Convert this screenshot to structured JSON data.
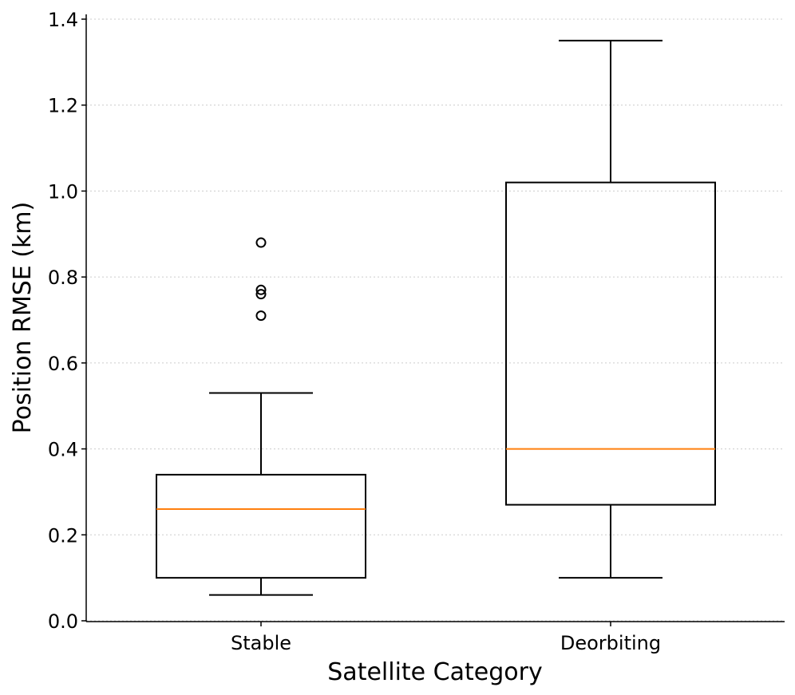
{
  "chart_data": {
    "type": "boxplot",
    "title": "",
    "xlabel": "Satellite Category",
    "ylabel": "Position RMSE (km)",
    "ylim": [
      0.0,
      1.4
    ],
    "yticks": [
      0.0,
      0.2,
      0.4,
      0.6,
      0.8,
      1.0,
      1.2,
      1.4
    ],
    "ytick_labels": [
      "0.0",
      "0.2",
      "0.4",
      "0.6",
      "0.8",
      "1.0",
      "1.2",
      "1.4"
    ],
    "grid": "horizontal dotted",
    "categories": [
      "Stable",
      "Deorbiting"
    ],
    "boxes": [
      {
        "name": "Stable",
        "whisker_low": 0.06,
        "q1": 0.1,
        "median": 0.26,
        "q3": 0.34,
        "whisker_high": 0.53,
        "outliers": [
          0.88,
          0.77,
          0.76,
          0.71
        ]
      },
      {
        "name": "Deorbiting",
        "whisker_low": 0.1,
        "q1": 0.27,
        "median": 0.4,
        "q3": 1.02,
        "whisker_high": 1.35,
        "outliers": []
      }
    ],
    "colors": {
      "box": "#000000",
      "median": "#ff7f0e",
      "grid": "#cccccc",
      "axis": "#000000"
    }
  }
}
